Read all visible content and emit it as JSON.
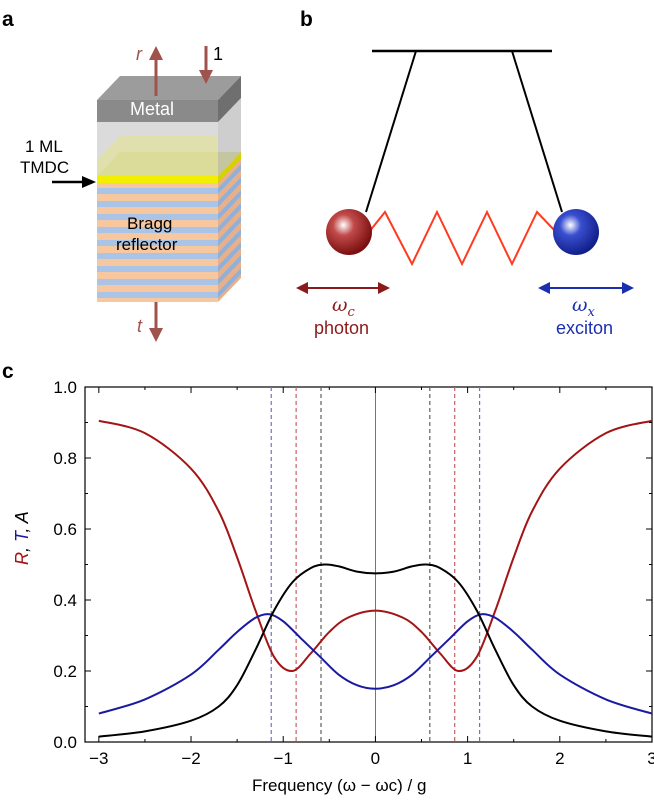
{
  "panels": {
    "a": "a",
    "b": "b",
    "c": "c"
  },
  "panel_a": {
    "metal_label": "Metal",
    "tmdc_line1": "1 ML",
    "tmdc_line2": "TMDC",
    "bragg_line1": "Bragg",
    "bragg_line2": "reflector",
    "r_label": "r",
    "one_label": "1",
    "t_label": "t",
    "colors": {
      "metal": "#8a8a8a",
      "tmdc": "#f2ee00",
      "layer_orange": "#f7c7a0",
      "layer_blue": "#a9c4e6",
      "arrow": "#a0524d"
    }
  },
  "panel_b": {
    "photon_symbol": "ω",
    "photon_sub": "c",
    "photon_label": "photon",
    "exciton_symbol": "ω",
    "exciton_sub": "x",
    "exciton_label": "exciton",
    "colors": {
      "photon": "#9b1b1b",
      "exciton": "#1a2fb0",
      "spring": "#ff3b1f"
    }
  },
  "chart_data": {
    "type": "line",
    "xlabel": "Frequency (ω − ωc) / g",
    "ylabel": "R, T, A",
    "xlim": [
      -3.15,
      3.0
    ],
    "ylim": [
      0,
      1.0
    ],
    "xticks": [
      "−3",
      "−2",
      "−1",
      "0",
      "1",
      "2",
      "3"
    ],
    "yticks": [
      "0.0",
      "0.2",
      "0.4",
      "0.6",
      "0.8",
      "1.0"
    ],
    "series": [
      {
        "name": "R",
        "color": "#a31414",
        "x": [
          -3.0,
          -2.5,
          -2.0,
          -1.7,
          -1.5,
          -1.3,
          -1.1,
          -0.9,
          -0.7,
          -0.5,
          -0.3,
          0.0,
          0.3,
          0.5,
          0.7,
          0.9,
          1.1,
          1.3,
          1.5,
          1.7,
          2.0,
          2.5,
          3.0
        ],
        "y": [
          0.905,
          0.87,
          0.77,
          0.65,
          0.52,
          0.37,
          0.24,
          0.2,
          0.25,
          0.31,
          0.35,
          0.37,
          0.35,
          0.31,
          0.25,
          0.2,
          0.24,
          0.37,
          0.52,
          0.65,
          0.77,
          0.87,
          0.905
        ]
      },
      {
        "name": "T",
        "color": "#1a1aa0",
        "x": [
          -3.0,
          -2.5,
          -2.0,
          -1.7,
          -1.5,
          -1.3,
          -1.15,
          -1.0,
          -0.8,
          -0.6,
          -0.4,
          -0.2,
          0.0,
          0.2,
          0.4,
          0.6,
          0.8,
          1.0,
          1.15,
          1.3,
          1.5,
          1.7,
          2.0,
          2.5,
          3.0
        ],
        "y": [
          0.08,
          0.12,
          0.19,
          0.26,
          0.31,
          0.35,
          0.36,
          0.34,
          0.29,
          0.24,
          0.19,
          0.16,
          0.15,
          0.16,
          0.19,
          0.24,
          0.29,
          0.34,
          0.36,
          0.35,
          0.31,
          0.26,
          0.19,
          0.12,
          0.08
        ]
      },
      {
        "name": "A",
        "color": "#000000",
        "x": [
          -3.0,
          -2.5,
          -2.0,
          -1.7,
          -1.5,
          -1.3,
          -1.1,
          -0.9,
          -0.7,
          -0.55,
          -0.4,
          -0.2,
          0.0,
          0.2,
          0.4,
          0.55,
          0.7,
          0.9,
          1.1,
          1.3,
          1.5,
          1.7,
          2.0,
          2.5,
          3.0
        ],
        "y": [
          0.015,
          0.03,
          0.06,
          0.1,
          0.16,
          0.26,
          0.37,
          0.45,
          0.49,
          0.5,
          0.495,
          0.48,
          0.475,
          0.48,
          0.495,
          0.5,
          0.49,
          0.45,
          0.37,
          0.26,
          0.16,
          0.1,
          0.06,
          0.03,
          0.015
        ]
      }
    ],
    "vlines": [
      {
        "x": -1.13,
        "color": "#7070c8"
      },
      {
        "x": -0.86,
        "color": "#c86060"
      },
      {
        "x": -0.59,
        "color": "#606060"
      },
      {
        "x": 0.59,
        "color": "#606060"
      },
      {
        "x": 0.86,
        "color": "#c86060"
      },
      {
        "x": 1.13,
        "color": "#7070c8"
      }
    ],
    "zero_line_x": 0
  }
}
